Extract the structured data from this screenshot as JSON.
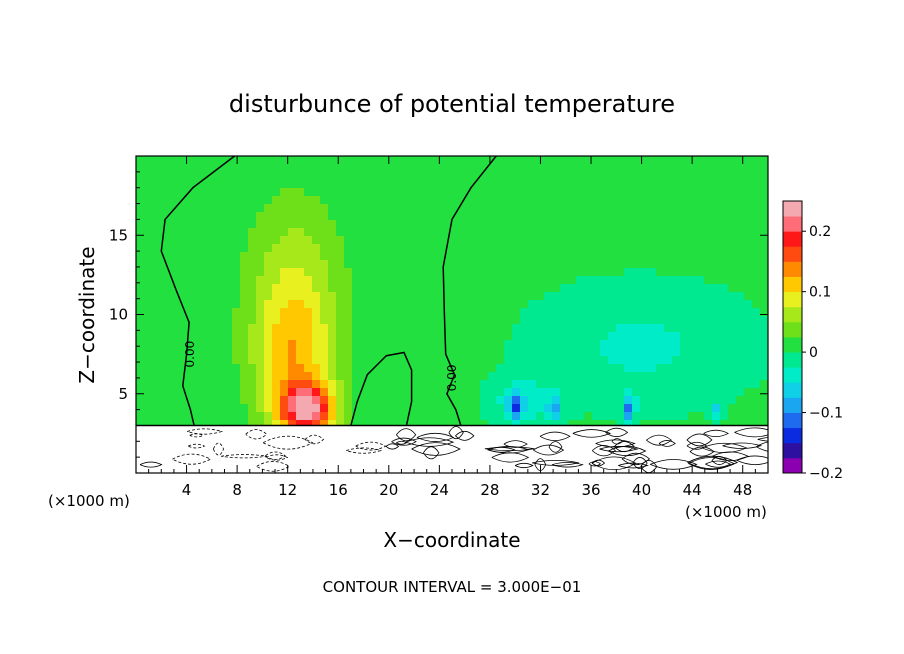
{
  "chart_data": {
    "type": "heatmap",
    "title": "disturbunce of potential temperature",
    "xlabel": "X−coordinate",
    "ylabel": "Z−coordinate",
    "x_unit_left": "(×1000 m)",
    "x_unit_right": "(×1000 m)",
    "footer": "CONTOUR INTERVAL = 3.000E−01",
    "xlim": [
      0,
      50
    ],
    "ylim": [
      0,
      20
    ],
    "x_ticks": [
      4,
      8,
      12,
      16,
      20,
      24,
      28,
      32,
      36,
      40,
      44,
      48
    ],
    "x_tick_labels": [
      "4",
      "8",
      "12",
      "16",
      "20",
      "24",
      "28",
      "32",
      "36",
      "40",
      "44",
      "48"
    ],
    "y_ticks": [
      5,
      10,
      15
    ],
    "y_tick_labels": [
      "5",
      "10",
      "15"
    ],
    "colorbar": {
      "range": [
        -0.2,
        0.2
      ],
      "tick_labels": [
        "0.2",
        "0.1",
        "0",
        "−0.1",
        "−0.2"
      ],
      "tick_values": [
        0.2,
        0.1,
        0,
        -0.1,
        -0.2
      ],
      "levels": [
        {
          "from": -0.2,
          "to": -0.175,
          "color": "#8b00b0"
        },
        {
          "from": -0.175,
          "to": -0.15,
          "color": "#2e10a0"
        },
        {
          "from": -0.15,
          "to": -0.125,
          "color": "#0a2be0"
        },
        {
          "from": -0.125,
          "to": -0.1,
          "color": "#1e6bf0"
        },
        {
          "from": -0.1,
          "to": -0.075,
          "color": "#1aa6f0"
        },
        {
          "from": -0.075,
          "to": -0.05,
          "color": "#10d0e8"
        },
        {
          "from": -0.05,
          "to": -0.025,
          "color": "#00ecc8"
        },
        {
          "from": -0.025,
          "to": 0,
          "color": "#00e890"
        },
        {
          "from": 0,
          "to": 0.025,
          "color": "#22e040"
        },
        {
          "from": 0.025,
          "to": 0.05,
          "color": "#6ee01a"
        },
        {
          "from": 0.05,
          "to": 0.075,
          "color": "#a6e81a"
        },
        {
          "from": 0.075,
          "to": 0.1,
          "color": "#e8f020"
        },
        {
          "from": 0.1,
          "to": 0.125,
          "color": "#ffc800"
        },
        {
          "from": 0.125,
          "to": 0.15,
          "color": "#ff8a00"
        },
        {
          "from": 0.15,
          "to": 0.175,
          "color": "#ff4a10"
        },
        {
          "from": 0.175,
          "to": 0.2,
          "color": "#ff1818"
        },
        {
          "from": 0.2,
          "to": 0.225,
          "color": "#ff6e78"
        },
        {
          "from": 0.225,
          "to": 0.25,
          "color": "#f4a8b0"
        }
      ]
    },
    "background_value": 0.01,
    "features": [
      {
        "x": 13.5,
        "z": 4.0,
        "sx": 2.2,
        "sz": 1.6,
        "amp": 0.2
      },
      {
        "x": 12.5,
        "z": 7.0,
        "sx": 3.2,
        "sz": 4.0,
        "amp": 0.09
      },
      {
        "x": 12.5,
        "z": 12.0,
        "sx": 3.5,
        "sz": 5.0,
        "amp": 0.06
      },
      {
        "x": 40.0,
        "z": 8.0,
        "sx": 9.0,
        "sz": 4.0,
        "amp": -0.04
      },
      {
        "x": 30.5,
        "z": 4.5,
        "sx": 2.5,
        "sz": 1.5,
        "amp": -0.05
      },
      {
        "x": 30.0,
        "z": 4.0,
        "sx": 0.5,
        "sz": 0.9,
        "amp": -0.09
      },
      {
        "x": 33.0,
        "z": 4.0,
        "sx": 0.5,
        "sz": 0.8,
        "amp": -0.08
      },
      {
        "x": 39.0,
        "z": 4.0,
        "sx": 0.5,
        "sz": 0.8,
        "amp": -0.1
      },
      {
        "x": 46.0,
        "z": 4.0,
        "sx": 0.5,
        "sz": 0.6,
        "amp": -0.06
      }
    ],
    "contour_label": "0.00"
  }
}
